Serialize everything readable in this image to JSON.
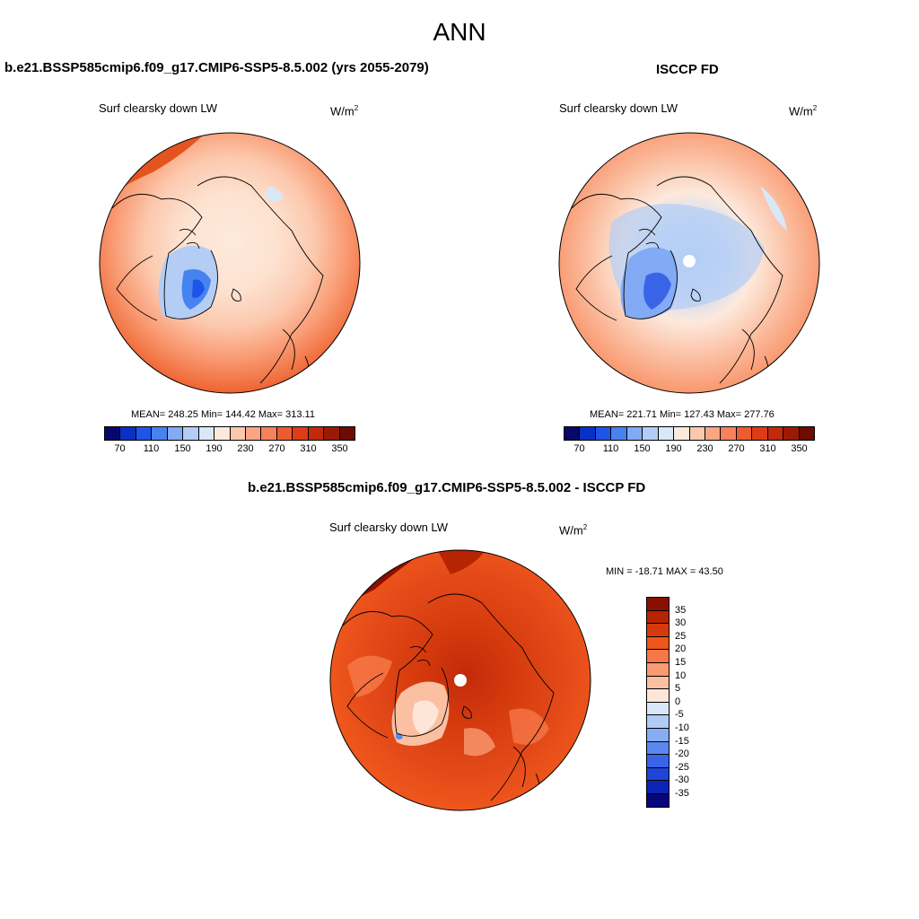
{
  "main_title": "ANN",
  "panel1": {
    "title": "b.e21.BSSP585cmip6.f09_g17.CMIP6-SSP5-8.5.002 (yrs 2055-2079)",
    "variable": "Surf clearsky down LW",
    "units": "W/m",
    "units_exp": "2",
    "stats": "MEAN= 248.25  Min= 144.42  Max= 313.11"
  },
  "panel2": {
    "title": "ISCCP FD",
    "variable": "Surf clearsky down LW",
    "units": "W/m",
    "units_exp": "2",
    "stats": "MEAN= 221.71  Min= 127.43  Max= 277.76"
  },
  "panel3": {
    "title": "b.e21.BSSP585cmip6.f09_g17.CMIP6-SSP5-8.5.002 - ISCCP FD",
    "variable": "Surf clearsky down LW",
    "units": "W/m",
    "units_exp": "2",
    "stats": "MIN = -18.71 MAX =  43.50"
  },
  "colorbar_abs": {
    "colors": [
      "#08086b",
      "#0a30c8",
      "#1e55e8",
      "#4682f0",
      "#82aaf5",
      "#b4cdf5",
      "#d9e8f7",
      "#fde9dc",
      "#fcc9ae",
      "#fba583",
      "#f6815b",
      "#ef5b30",
      "#de3c18",
      "#c22a0c",
      "#9b1a06",
      "#6e0c02"
    ],
    "labels": [
      "70",
      "110",
      "150",
      "190",
      "230",
      "270",
      "310",
      "350"
    ]
  },
  "colorbar_diff": {
    "colors": [
      "#8a0f00",
      "#b52403",
      "#d53a0d",
      "#ee561c",
      "#f67747",
      "#f99a72",
      "#fbbfa2",
      "#fde6d8",
      "#d7e6f8",
      "#b0ccf5",
      "#88acf2",
      "#5a88ee",
      "#3a64e8",
      "#1e44d8",
      "#0a24b8",
      "#06067e"
    ],
    "labels": [
      "35",
      "30",
      "25",
      "20",
      "15",
      "10",
      "5",
      "0",
      "-5",
      "-10",
      "-15",
      "-20",
      "-25",
      "-30",
      "-35"
    ]
  }
}
